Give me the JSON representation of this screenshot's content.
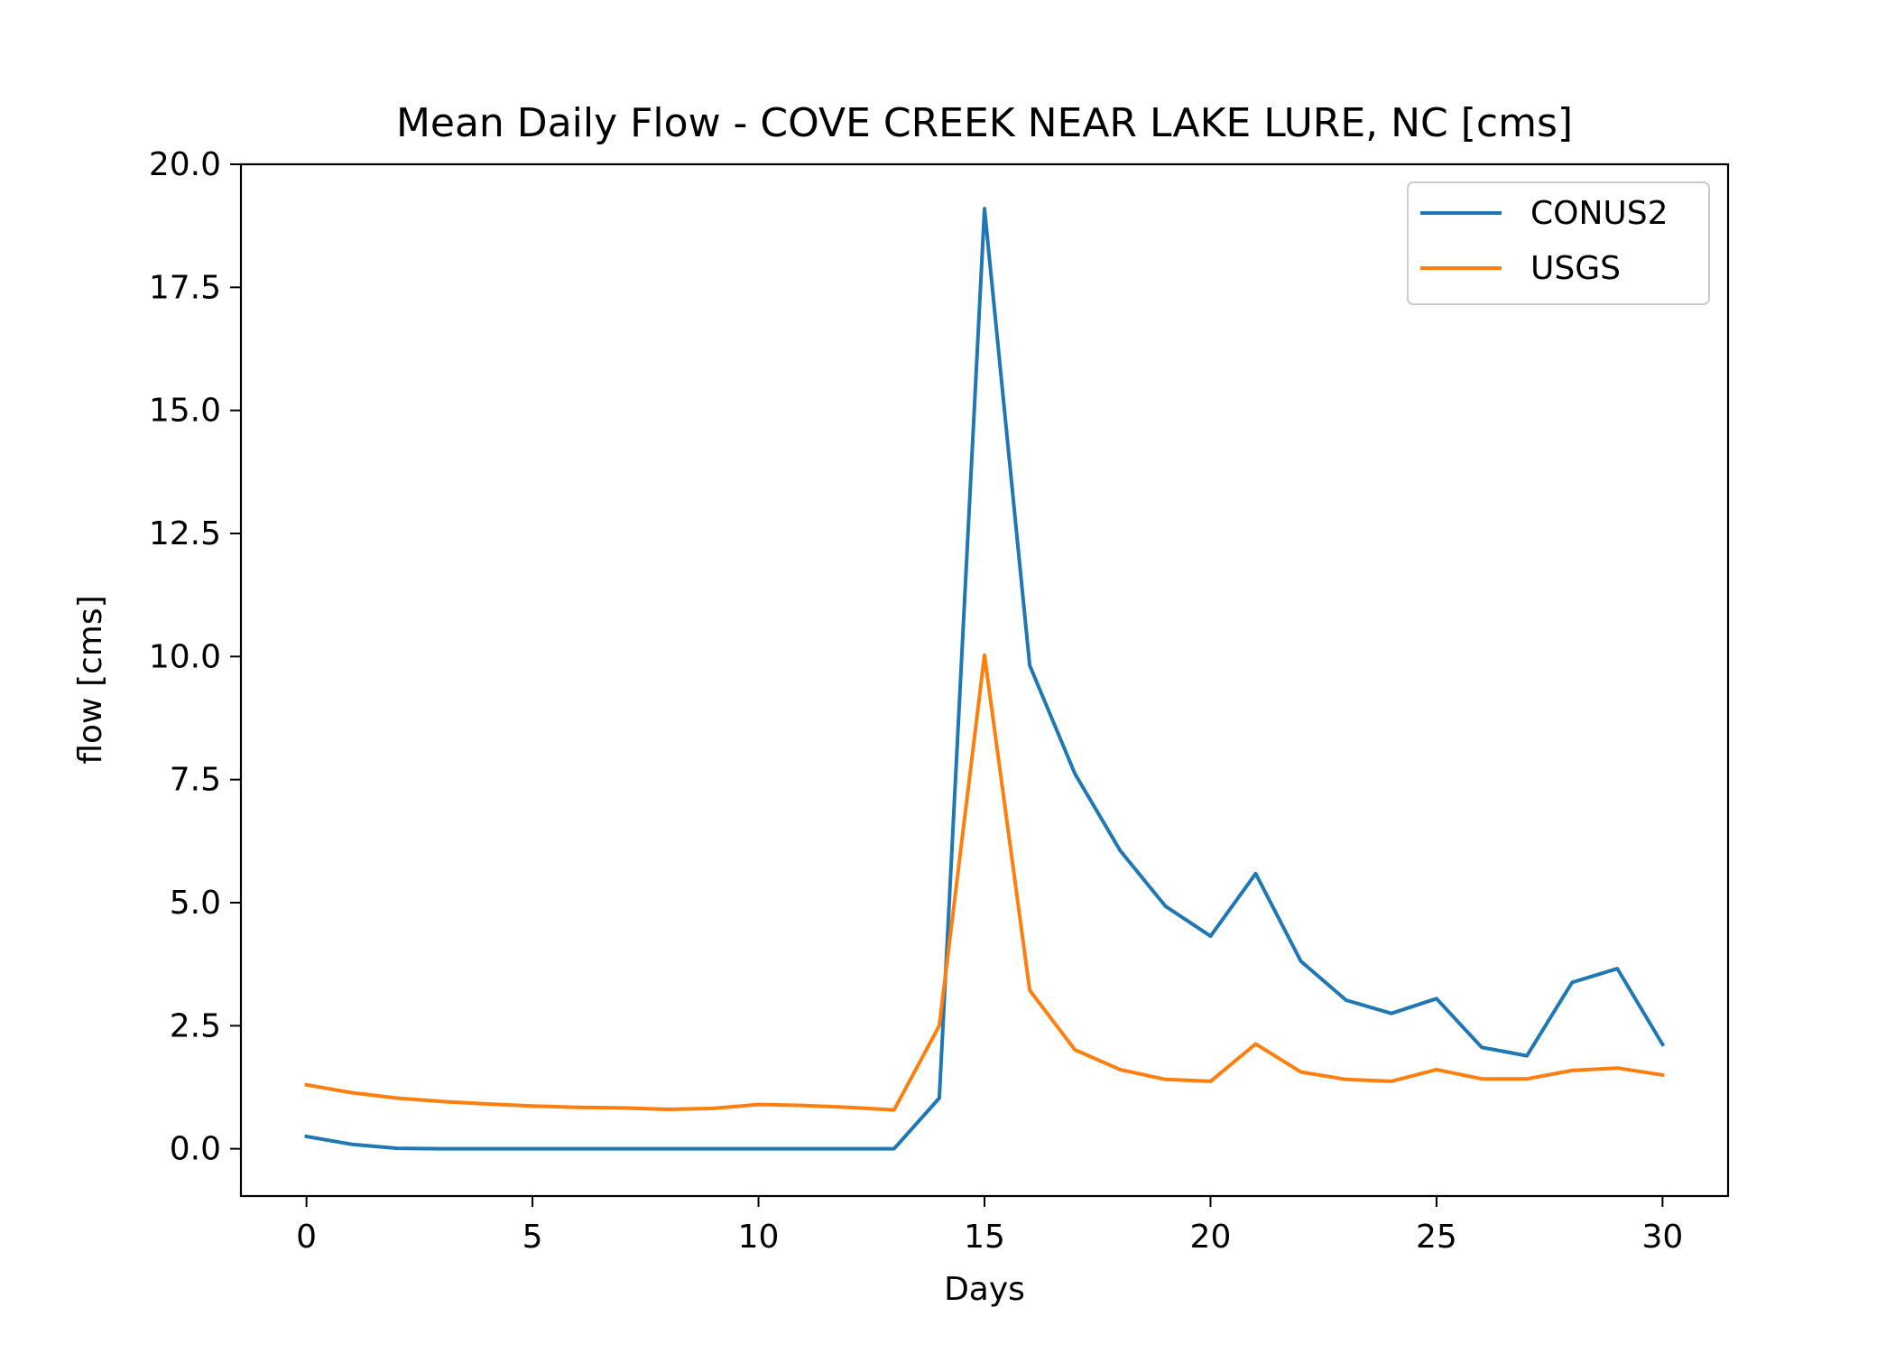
{
  "chart_data": {
    "type": "line",
    "title": "Mean Daily Flow - COVE CREEK NEAR LAKE LURE, NC [cms]",
    "xlabel": "Days",
    "ylabel": "flow [cms]",
    "xlim": [
      -1.45,
      31.45
    ],
    "ylim": [
      -0.96,
      20.0
    ],
    "xticks": [
      "0",
      "5",
      "10",
      "15",
      "20",
      "25",
      "30"
    ],
    "yticks": [
      "0.0",
      "2.5",
      "5.0",
      "7.5",
      "10.0",
      "12.5",
      "15.0",
      "17.5",
      "20.0"
    ],
    "grid": false,
    "legend_position": "upper right",
    "x": [
      0,
      1,
      2,
      3,
      4,
      5,
      6,
      7,
      8,
      9,
      10,
      11,
      12,
      13,
      14,
      15,
      16,
      17,
      18,
      19,
      20,
      21,
      22,
      23,
      24,
      25,
      26,
      27,
      28,
      29,
      30
    ],
    "series": [
      {
        "name": "CONUS2",
        "color": "#1f77b4",
        "values": [
          0.25,
          0.09,
          0.01,
          0.0,
          0.0,
          0.0,
          0.0,
          0.0,
          0.0,
          0.0,
          0.0,
          0.0,
          0.0,
          0.0,
          1.03,
          19.1,
          9.82,
          7.62,
          6.06,
          4.93,
          4.32,
          5.59,
          3.81,
          3.02,
          2.75,
          3.05,
          2.06,
          1.89,
          3.38,
          3.66,
          2.12
        ]
      },
      {
        "name": "USGS",
        "color": "#ff7f0e",
        "values": [
          1.3,
          1.14,
          1.03,
          0.96,
          0.91,
          0.87,
          0.84,
          0.83,
          0.8,
          0.82,
          0.9,
          0.88,
          0.84,
          0.79,
          2.5,
          10.03,
          3.22,
          2.01,
          1.61,
          1.41,
          1.37,
          2.13,
          1.56,
          1.41,
          1.37,
          1.61,
          1.42,
          1.42,
          1.59,
          1.64,
          1.5
        ]
      }
    ]
  }
}
